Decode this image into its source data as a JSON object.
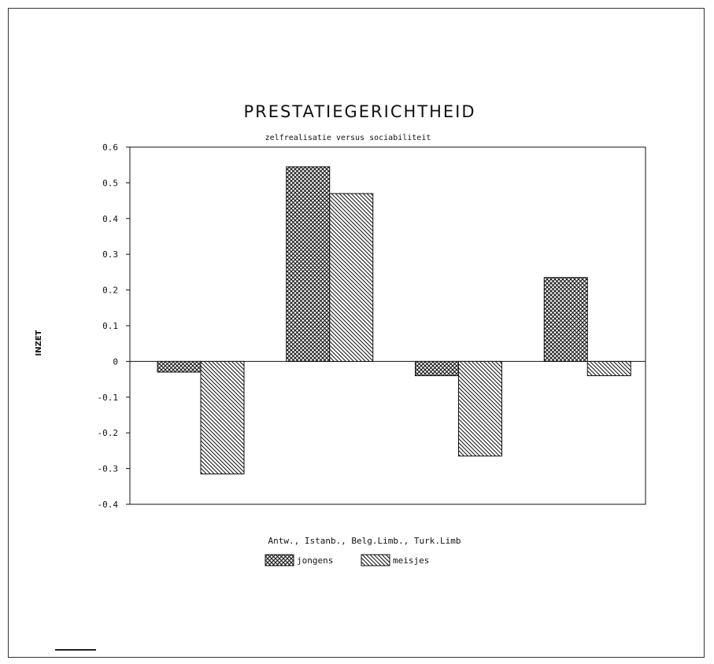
{
  "chart_data": {
    "type": "bar",
    "title": "PRESTATIEGERICHTHEID",
    "subtitle": "zelfrealisatie versus sociabiliteit",
    "ylabel": "INZET",
    "xlabel": "Antw., Istanb., Belg.Limb., Turk.Limb",
    "categories": [
      "Antw.",
      "Istanb.",
      "Belg.Limb.",
      "Turk.Limb"
    ],
    "series": [
      {
        "name": "jongens",
        "pattern": "crosshatch",
        "values": [
          -0.03,
          0.545,
          -0.04,
          0.235
        ]
      },
      {
        "name": "meisjes",
        "pattern": "diagonal",
        "values": [
          -0.315,
          0.47,
          -0.265,
          -0.04
        ]
      }
    ],
    "ylim": [
      -0.4,
      0.6
    ],
    "yticks": [
      "0.6",
      "0.5",
      "0.4",
      "0.3",
      "0.2",
      "0.1",
      "0",
      "-0.1",
      "-0.2",
      "-0.3",
      "-0.4"
    ],
    "grid": false,
    "legend_position": "bottom"
  }
}
